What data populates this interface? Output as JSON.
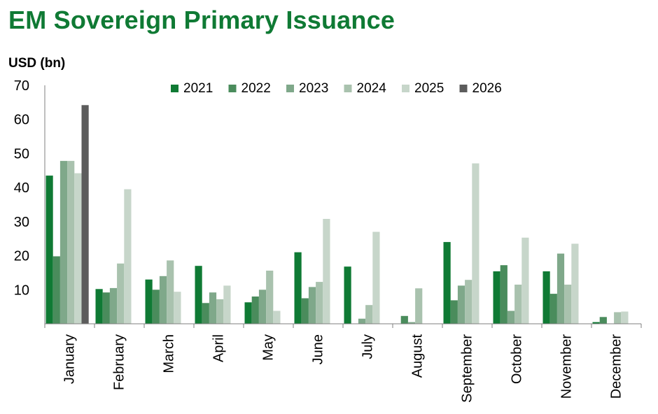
{
  "chart_data": {
    "type": "bar",
    "title": "EM Sovereign Primary Issuance",
    "ylabel": "USD (bn)",
    "xlabel": "",
    "ylim": [
      0,
      70
    ],
    "yticks": [
      10,
      20,
      30,
      40,
      50,
      60,
      70
    ],
    "legend_position": "top",
    "categories": [
      "January",
      "February",
      "March",
      "April",
      "May",
      "June",
      "July",
      "August",
      "September",
      "October",
      "November",
      "December"
    ],
    "series": [
      {
        "name": "2021",
        "color": "#0f7a34",
        "values": [
          43.5,
          10.2,
          13.0,
          17.0,
          6.3,
          21.0,
          16.8,
          0,
          24.0,
          15.4,
          15.4,
          0.5
        ]
      },
      {
        "name": "2022",
        "color": "#4a8c5c",
        "values": [
          19.8,
          9.2,
          10.0,
          6.1,
          8.0,
          7.5,
          0,
          2.3,
          6.9,
          17.2,
          8.8,
          2.0
        ]
      },
      {
        "name": "2023",
        "color": "#7fa88a",
        "values": [
          47.8,
          10.5,
          14.0,
          9.2,
          10.0,
          10.8,
          1.5,
          0.5,
          11.2,
          3.8,
          20.6,
          0
        ]
      },
      {
        "name": "2024",
        "color": "#a9c2ae",
        "values": [
          47.8,
          17.7,
          18.6,
          7.2,
          15.6,
          12.3,
          5.5,
          10.4,
          12.9,
          11.5,
          11.5,
          3.4
        ]
      },
      {
        "name": "2025",
        "color": "#c7d6ca",
        "values": [
          44.2,
          39.5,
          9.4,
          11.2,
          3.8,
          30.8,
          27.0,
          0,
          47.1,
          25.3,
          23.5,
          3.6
        ]
      },
      {
        "name": "2026",
        "color": "#5c5c5c",
        "values": [
          64.2,
          0,
          0,
          0,
          0,
          0,
          0,
          0,
          0,
          0,
          0,
          0
        ]
      }
    ]
  }
}
